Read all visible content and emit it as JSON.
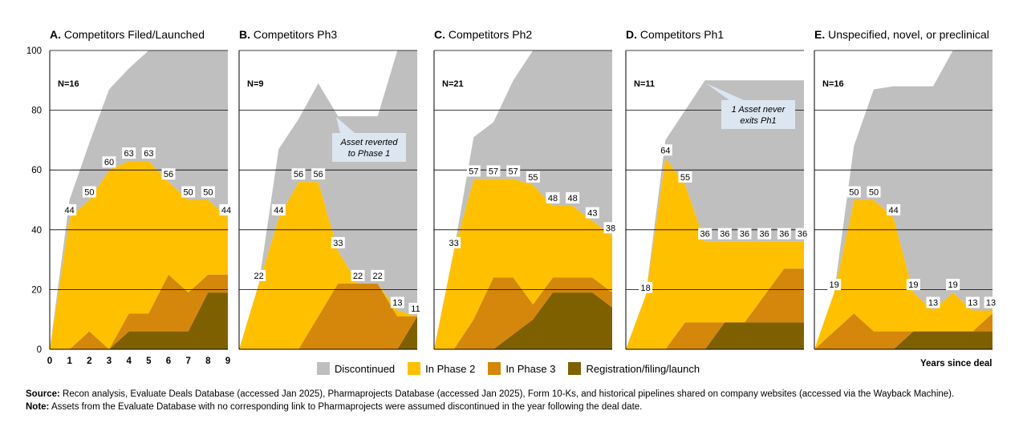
{
  "colors": {
    "discontinued": "#bfbfbf",
    "phase2": "#ffc000",
    "phase3": "#d4870a",
    "registration": "#7f6000",
    "gridline": "#000000",
    "callout_bg": "#dce6f1"
  },
  "footnotes": {
    "source_label": "Source:",
    "source_text": " Recon analysis, Evaluate Deals Database (accessed Jan 2025), Pharmaprojects Database (accessed Jan 2025), Form 10-Ks, and historical pipelines shared on company websites (accessed via the Wayback Machine).",
    "note_label": "Note:",
    "note_text": " Assets from the Evaluate Database with no corresponding link to Pharmaprojects were assumed discontinued in the year following the deal date."
  },
  "chart_data": {
    "type": "area",
    "ylim": [
      0,
      100
    ],
    "yticks": [
      "0",
      "20",
      "40",
      "60",
      "80",
      "100"
    ],
    "xlim": [
      0,
      9
    ],
    "xticks": [
      "0",
      "1",
      "2",
      "3",
      "4",
      "5",
      "6",
      "7",
      "8",
      "9"
    ],
    "xlabel": "Years since deal",
    "legend": [
      "Discontinued",
      "In Phase 2",
      "In Phase 3",
      "Registration/filing/launch"
    ],
    "legend_position": "bottom",
    "panels": [
      {
        "letter": "A.",
        "title": "Competitors Filed/Launched",
        "n_label": "N=16",
        "x": [
          0,
          1,
          2,
          3,
          4,
          5,
          6,
          7,
          8,
          9
        ],
        "registration": [
          0,
          0,
          0,
          0,
          6,
          6,
          6,
          6,
          19,
          19
        ],
        "phase3": [
          0,
          0,
          6,
          0,
          6,
          6,
          19,
          13,
          6,
          6
        ],
        "phase2": [
          0,
          44,
          44,
          60,
          51,
          51,
          31,
          31,
          25,
          19
        ],
        "discontinued": [
          0,
          6,
          19,
          27,
          31,
          37,
          44,
          50,
          50,
          56
        ],
        "labels": [
          "",
          "44",
          "50",
          "60",
          "63",
          "63",
          "56",
          "50",
          "50",
          "44"
        ],
        "callout": ""
      },
      {
        "letter": "B.",
        "title": "Competitors Ph3",
        "n_label": "N=9",
        "x": [
          0,
          1,
          2,
          3,
          4,
          5,
          6,
          7,
          8,
          9
        ],
        "registration": [
          0,
          0,
          0,
          0,
          0,
          0,
          0,
          0,
          0,
          11
        ],
        "phase3": [
          0,
          0,
          0,
          0,
          11,
          22,
          22,
          22,
          11,
          0
        ],
        "phase2": [
          0,
          22,
          44,
          56,
          45,
          11,
          0,
          0,
          2,
          0
        ],
        "discontinued": [
          0,
          0,
          23,
          21,
          33,
          45,
          56,
          56,
          87,
          89
        ],
        "labels": [
          "",
          "22",
          "44",
          "56",
          "56",
          "33",
          "22",
          "22",
          "13",
          "11"
        ],
        "callout": "Asset  reverted\nto Phase 1"
      },
      {
        "letter": "C.",
        "title": "Competitors Ph2",
        "n_label": "N=21",
        "x": [
          0,
          1,
          2,
          3,
          4,
          5,
          6,
          7,
          8,
          9
        ],
        "registration": [
          0,
          0,
          0,
          0,
          5,
          10,
          19,
          19,
          19,
          14
        ],
        "phase3": [
          0,
          0,
          10,
          24,
          19,
          5,
          5,
          5,
          5,
          5
        ],
        "phase2": [
          0,
          33,
          47,
          33,
          33,
          40,
          24,
          24,
          19,
          19
        ],
        "discontinued": [
          0,
          0,
          14,
          19,
          33,
          45,
          52,
          52,
          57,
          62
        ],
        "labels": [
          "",
          "33",
          "57",
          "57",
          "57",
          "55",
          "48",
          "48",
          "43",
          "38"
        ],
        "callout": ""
      },
      {
        "letter": "D.",
        "title": "Competitors Ph1",
        "n_label": "N=11",
        "x": [
          0,
          1,
          2,
          3,
          4,
          5,
          6,
          7,
          8,
          9
        ],
        "registration": [
          0,
          0,
          0,
          0,
          0,
          9,
          9,
          9,
          9,
          9
        ],
        "phase3": [
          0,
          0,
          0,
          9,
          9,
          0,
          0,
          9,
          18,
          18
        ],
        "phase2": [
          0,
          18,
          64,
          46,
          27,
          27,
          27,
          18,
          9,
          9
        ],
        "discontinued": [
          0,
          0,
          6,
          25,
          54,
          54,
          54,
          54,
          54,
          54
        ],
        "labels": [
          "",
          "18",
          "64",
          "55",
          "36",
          "36",
          "36",
          "36",
          "36",
          "36"
        ],
        "callout": "1 Asset  never\nexits Ph1"
      },
      {
        "letter": "E.",
        "title": "Unspecified, novel, or preclinical",
        "n_label": "N=16",
        "x": [
          0,
          1,
          2,
          3,
          4,
          5,
          6,
          7,
          8,
          9
        ],
        "registration": [
          0,
          0,
          0,
          0,
          0,
          6,
          6,
          6,
          6,
          6
        ],
        "phase3": [
          0,
          6,
          12,
          6,
          6,
          0,
          0,
          0,
          0,
          6
        ],
        "phase2": [
          0,
          13,
          38,
          44,
          38,
          13,
          7,
          13,
          7,
          1
        ],
        "discontinued": [
          0,
          0,
          18,
          37,
          44,
          69,
          75,
          81,
          87,
          87
        ],
        "labels": [
          "",
          "19",
          "50",
          "50",
          "44",
          "19",
          "13",
          "19",
          "13",
          "13"
        ],
        "callout": ""
      }
    ]
  }
}
